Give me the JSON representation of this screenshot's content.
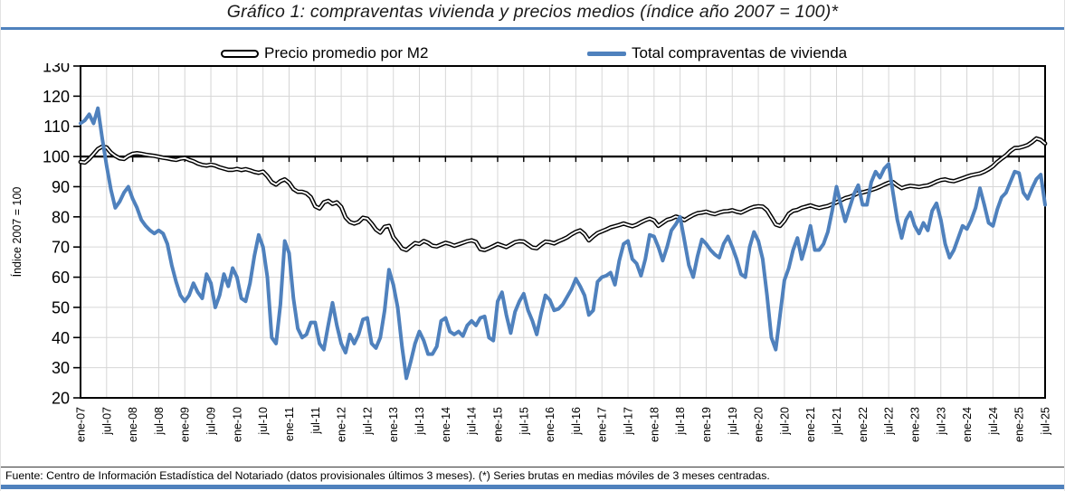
{
  "title": "Gráfico 1: compraventas vivienda y precios medios (índice año 2007 = 100)*",
  "footer": "Fuente: Centro de Información Estadística del Notariado (datos provisionales últimos 3 meses). (*) Series brutas en medias móviles de 3 meses centradas.",
  "colors": {
    "accent_blue": "#4F81BD",
    "series_blue": "#4F81BD",
    "series_black": "#000000",
    "grid": "#D6D6D6",
    "axis": "#000000"
  },
  "chart_data": {
    "type": "line",
    "title": "Gráfico 1: compraventas vivienda y precios medios (índice año 2007 = 100)*",
    "xlabel": "",
    "ylabel": "Índice 2007 = 100",
    "ylim": [
      20,
      130
    ],
    "ytick_step": 10,
    "grid": true,
    "legend_position": "top",
    "category_axis_at": 100,
    "x_frequency": "monthly",
    "x_range": [
      "ene-07",
      "jul-25"
    ],
    "y_tick_labels": [
      "20",
      "30",
      "40",
      "50",
      "60",
      "70",
      "80",
      "90",
      "100",
      "110",
      "120",
      "130"
    ],
    "x_tick_labels": [
      "ene-07",
      "jul-07",
      "ene-08",
      "jul-08",
      "ene-09",
      "jul-09",
      "ene-10",
      "jul-10",
      "ene-11",
      "jul-11",
      "ene-12",
      "jul-12",
      "ene-13",
      "jul-13",
      "ene-14",
      "jul-14",
      "ene-15",
      "jul-15",
      "ene-16",
      "jul-16",
      "ene-17",
      "jul-17",
      "ene-18",
      "jul-18",
      "ene-19",
      "jul-19",
      "ene-20",
      "jul-20",
      "ene-21",
      "jul-21",
      "ene-22",
      "jul-22",
      "ene-23",
      "jul-23",
      "ene-24",
      "jul-24",
      "ene-25",
      "jul-25"
    ],
    "series": [
      {
        "name": "Precio promedio por M2",
        "style": "double-black",
        "values": [
          98.2,
          98.0,
          99.2,
          100.8,
          102.5,
          103.3,
          103.0,
          101.3,
          100.2,
          99.4,
          99.2,
          100.2,
          100.9,
          101.1,
          100.9,
          100.6,
          100.4,
          100.2,
          99.9,
          99.6,
          99.4,
          99.1,
          98.9,
          99.3,
          99.5,
          98.9,
          98.4,
          97.7,
          97.2,
          97.0,
          97.3,
          97.0,
          96.4,
          96.0,
          95.6,
          95.6,
          95.9,
          95.5,
          95.8,
          95.4,
          94.9,
          94.6,
          95.0,
          93.5,
          91.5,
          90.7,
          91.8,
          92.4,
          91.3,
          89.2,
          88.3,
          88.3,
          87.8,
          86.5,
          83.5,
          82.8,
          84.8,
          85.3,
          84.3,
          84.8,
          83.3,
          79.8,
          78.3,
          77.8,
          78.3,
          79.7,
          79.4,
          77.8,
          75.8,
          74.8,
          76.7,
          77.0,
          73.3,
          71.5,
          69.5,
          69.0,
          70.2,
          71.3,
          71.0,
          72.0,
          71.4,
          70.4,
          70.2,
          70.8,
          71.4,
          71.0,
          70.4,
          70.9,
          71.4,
          71.9,
          72.2,
          71.7,
          69.3,
          69.0,
          69.6,
          70.3,
          71.0,
          70.5,
          70.0,
          70.8,
          71.6,
          71.9,
          71.8,
          70.8,
          69.8,
          69.6,
          70.8,
          71.8,
          71.6,
          71.2,
          71.9,
          72.5,
          73.2,
          74.2,
          75.0,
          75.5,
          74.3,
          72.2,
          73.5,
          74.6,
          75.2,
          75.8,
          76.5,
          76.9,
          77.3,
          77.8,
          77.3,
          76.9,
          77.4,
          78.2,
          78.9,
          79.4,
          78.8,
          77.0,
          78.0,
          79.0,
          79.4,
          80.1,
          79.7,
          78.9,
          79.8,
          80.6,
          81.2,
          81.4,
          81.7,
          81.2,
          80.9,
          81.4,
          81.8,
          81.9,
          82.2,
          81.7,
          81.4,
          82.1,
          82.8,
          83.3,
          83.5,
          83.4,
          82.2,
          79.9,
          77.5,
          77.0,
          78.7,
          81.0,
          82.0,
          82.3,
          83.0,
          83.4,
          83.8,
          83.3,
          82.9,
          83.3,
          83.6,
          84.2,
          84.8,
          85.5,
          86.2,
          86.6,
          87.2,
          87.9,
          88.1,
          88.5,
          88.9,
          89.4,
          90.0,
          90.7,
          91.3,
          91.5,
          90.4,
          89.5,
          90.0,
          90.3,
          90.1,
          89.9,
          90.2,
          90.4,
          91.0,
          91.7,
          92.2,
          92.4,
          92.0,
          91.8,
          92.3,
          92.8,
          93.3,
          93.8,
          94.1,
          94.4,
          95.0,
          95.8,
          96.8,
          98.2,
          99.3,
          100.4,
          101.8,
          102.8,
          102.9,
          103.3,
          103.8,
          104.8,
          106.0,
          105.5,
          104.3
        ]
      },
      {
        "name": "Total compraventas de vivienda",
        "style": "solid-blue",
        "values": [
          111,
          112,
          114,
          111,
          116,
          106,
          97,
          89,
          83,
          85,
          88,
          90,
          86,
          83,
          79,
          77,
          75.5,
          74.5,
          75.5,
          74.5,
          71,
          64,
          58.5,
          54,
          52,
          54,
          58,
          55,
          53,
          61,
          58,
          50,
          54,
          61,
          57,
          63,
          60,
          53,
          52,
          58,
          67,
          74,
          70,
          60,
          40,
          38,
          51,
          72,
          68,
          53,
          43,
          40,
          41,
          45,
          45,
          38,
          36,
          44,
          51.5,
          44,
          38,
          35,
          41,
          38,
          41,
          46,
          46.5,
          38,
          36.5,
          40,
          49,
          62.5,
          57.5,
          50,
          37,
          26.5,
          32,
          38,
          42,
          39,
          34.5,
          34.5,
          37,
          45.5,
          46.5,
          42,
          41,
          42,
          40.5,
          44,
          45.5,
          44,
          46.5,
          47,
          40,
          39,
          52,
          55,
          47.5,
          41.5,
          48.5,
          52,
          54.5,
          49,
          45.5,
          41,
          48,
          54,
          52.5,
          49,
          49.5,
          51,
          53.5,
          56,
          59.5,
          57,
          54,
          47.5,
          49,
          58.5,
          60,
          60.5,
          61.5,
          57.5,
          65.5,
          71,
          72,
          66,
          64.5,
          60.5,
          66,
          74,
          73.5,
          70,
          65.5,
          70,
          75.5,
          77.5,
          80,
          72,
          64,
          60,
          67,
          72.5,
          71,
          69,
          67.5,
          66.5,
          71,
          73.5,
          70,
          66,
          61,
          60,
          70,
          75,
          72,
          66,
          54,
          40,
          36,
          47.5,
          59,
          63,
          69,
          73,
          66,
          71,
          77,
          69,
          69,
          71,
          75,
          82,
          90,
          84,
          78.5,
          83,
          87.5,
          90.5,
          84,
          84,
          91.5,
          95,
          93,
          96,
          97.5,
          88,
          79,
          73,
          79,
          81.5,
          77,
          74.5,
          78,
          75.5,
          82,
          84.5,
          79,
          71,
          66.5,
          69,
          73,
          77,
          76,
          79,
          83,
          89.5,
          84,
          78,
          77,
          82.5,
          86.5,
          88,
          91.5,
          95,
          94.5,
          88,
          86,
          89.5,
          92.5,
          94,
          84
        ]
      }
    ]
  }
}
